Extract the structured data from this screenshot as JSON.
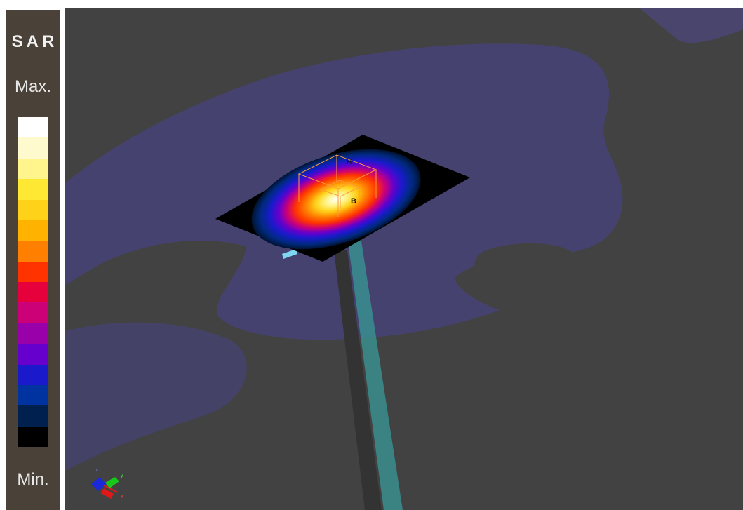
{
  "legend": {
    "title": "SAR",
    "max_label": "Max.",
    "min_label": "Min.",
    "colors": [
      "#ffffff",
      "#fffacd",
      "#fff58c",
      "#ffe833",
      "#ffd21a",
      "#ffb300",
      "#ff8000",
      "#ff3300",
      "#e6003c",
      "#cc0077",
      "#9900aa",
      "#6600cc",
      "#1a1acc",
      "#0033a0",
      "#002050",
      "#000000"
    ]
  },
  "viewport": {
    "background": "#424242",
    "labels": {
      "h_field": "H",
      "b_field": "B"
    },
    "axes": {
      "x": "x",
      "y": "y",
      "z": "z"
    }
  }
}
